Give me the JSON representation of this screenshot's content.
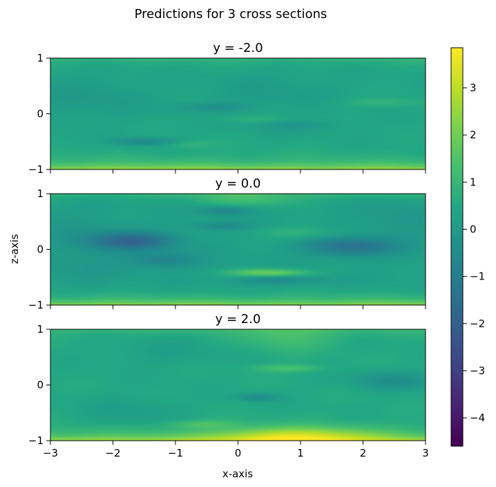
{
  "figure": {
    "suptitle": "Predictions for 3 cross sections",
    "xlabel": "x-axis",
    "ylabel": "z-axis"
  },
  "chart_data": [
    {
      "type": "heatmap",
      "title": "y = -2.0",
      "xlim": [
        -3,
        3
      ],
      "ylim": [
        -1,
        1
      ],
      "x_ticks": [
        -3,
        -2,
        -1,
        0,
        1,
        2,
        3
      ],
      "y_ticks": [
        -1,
        0,
        1
      ],
      "x_tick_labels": [
        "−3",
        "−2",
        "−1",
        "0",
        "1",
        "2",
        "3"
      ],
      "y_tick_labels": [
        "−1",
        "0",
        "1"
      ],
      "x_tick_labels_visible": false,
      "baseline": 0.4,
      "blobs": [
        {
          "x": -1.5,
          "z": -0.5,
          "sx": 0.35,
          "sz": 0.05,
          "v": -1.1
        },
        {
          "x": -0.4,
          "z": 0.12,
          "sx": 0.4,
          "sz": 0.06,
          "v": -0.6
        },
        {
          "x": 0.3,
          "z": -0.1,
          "sx": 0.5,
          "sz": 0.05,
          "v": 0.5
        },
        {
          "x": 0.9,
          "z": -0.2,
          "sx": 0.5,
          "sz": 0.08,
          "v": -0.5
        },
        {
          "x": 2.3,
          "z": 0.2,
          "sx": 0.5,
          "sz": 0.06,
          "v": 0.5
        },
        {
          "x": -2.4,
          "z": 0.3,
          "sx": 0.7,
          "sz": 0.3,
          "v": -0.4
        },
        {
          "x": 0.5,
          "z": 0.4,
          "sx": 0.8,
          "sz": 0.3,
          "v": -0.3
        },
        {
          "x": -0.8,
          "z": -0.55,
          "sx": 0.3,
          "sz": 0.05,
          "v": 0.5
        }
      ],
      "edge_gradient": {
        "top": 1.0,
        "bottom": 2.7
      }
    },
    {
      "type": "heatmap",
      "title": "y = 0.0",
      "xlim": [
        -3,
        3
      ],
      "ylim": [
        -1,
        1
      ],
      "x_ticks": [
        -3,
        -2,
        -1,
        0,
        1,
        2,
        3
      ],
      "y_ticks": [
        -1,
        0,
        1
      ],
      "x_tick_labels": [
        "−3",
        "−2",
        "−1",
        "0",
        "1",
        "2",
        "3"
      ],
      "y_tick_labels": [
        "−1",
        "0",
        "1"
      ],
      "x_tick_labels_visible": false,
      "baseline": 0.2,
      "blobs": [
        {
          "x": -1.7,
          "z": 0.15,
          "sx": 0.5,
          "sz": 0.12,
          "v": -1.9
        },
        {
          "x": -1.2,
          "z": -0.2,
          "sx": 0.4,
          "sz": 0.1,
          "v": -1.0
        },
        {
          "x": 1.8,
          "z": 0.05,
          "sx": 0.5,
          "sz": 0.12,
          "v": -1.6
        },
        {
          "x": -0.2,
          "z": 0.7,
          "sx": 0.3,
          "sz": 0.06,
          "v": -1.0
        },
        {
          "x": -0.3,
          "z": 0.42,
          "sx": 0.3,
          "sz": 0.05,
          "v": -0.8
        },
        {
          "x": 0.5,
          "z": -0.42,
          "sx": 0.45,
          "sz": 0.05,
          "v": 1.9
        },
        {
          "x": 0.6,
          "z": -0.55,
          "sx": 0.5,
          "sz": 0.06,
          "v": -0.9
        },
        {
          "x": 1.0,
          "z": 0.3,
          "sx": 0.5,
          "sz": 0.08,
          "v": 0.7
        },
        {
          "x": 0.2,
          "z": 0.9,
          "sx": 0.6,
          "sz": 0.1,
          "v": 0.8
        },
        {
          "x": -2.5,
          "z": 0.0,
          "sx": 0.5,
          "sz": 0.5,
          "v": -0.3
        },
        {
          "x": 2.6,
          "z": 0.5,
          "sx": 0.5,
          "sz": 0.3,
          "v": -0.3
        }
      ],
      "edge_gradient": {
        "top": 1.0,
        "bottom": 2.5
      }
    },
    {
      "type": "heatmap",
      "title": "y = 2.0",
      "xlim": [
        -3,
        3
      ],
      "ylim": [
        -1,
        1
      ],
      "x_ticks": [
        -3,
        -2,
        -1,
        0,
        1,
        2,
        3
      ],
      "y_ticks": [
        -1,
        0,
        1
      ],
      "x_tick_labels": [
        "−3",
        "−2",
        "−1",
        "0",
        "1",
        "2",
        "3"
      ],
      "y_tick_labels": [
        "−1",
        "0",
        "1"
      ],
      "x_tick_labels_visible": true,
      "baseline": 0.5,
      "blobs": [
        {
          "x": 0.9,
          "z": -0.92,
          "sx": 0.9,
          "sz": 0.12,
          "v": 2.0
        },
        {
          "x": 0.3,
          "z": -0.22,
          "sx": 0.25,
          "sz": 0.05,
          "v": -1.0
        },
        {
          "x": 0.8,
          "z": 0.3,
          "sx": 0.4,
          "sz": 0.05,
          "v": 0.9
        },
        {
          "x": 2.5,
          "z": 0.08,
          "sx": 0.5,
          "sz": 0.12,
          "v": -0.9
        },
        {
          "x": 0.8,
          "z": 0.9,
          "sx": 0.5,
          "sz": 0.2,
          "v": 0.8
        },
        {
          "x": -1.2,
          "z": 0.6,
          "sx": 0.7,
          "sz": 0.2,
          "v": -0.3
        },
        {
          "x": -1.7,
          "z": -0.5,
          "sx": 0.6,
          "sz": 0.2,
          "v": -0.4
        },
        {
          "x": -0.6,
          "z": -0.7,
          "sx": 0.4,
          "sz": 0.05,
          "v": 0.8
        }
      ],
      "edge_gradient": {
        "top": 1.1,
        "bottom": 2.8
      }
    }
  ],
  "colorbar": {
    "vmin": -4.6,
    "vmax": 3.85,
    "ticks": [
      -4,
      -3,
      -2,
      -1,
      0,
      1,
      2,
      3
    ],
    "tick_labels": [
      "−4",
      "−3",
      "−2",
      "−1",
      "0",
      "1",
      "2",
      "3"
    ],
    "colormap": "viridis"
  }
}
